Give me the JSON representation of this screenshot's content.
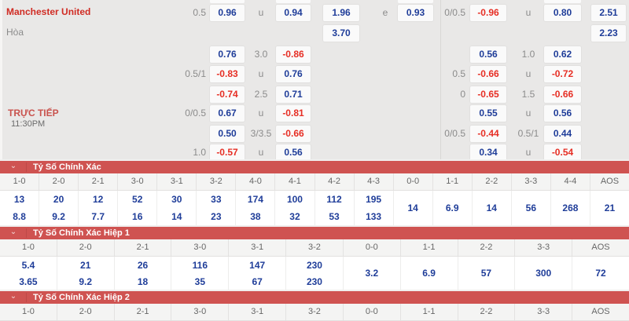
{
  "match": {
    "home_team": "Manchester United",
    "draw_label": "Hòa",
    "live_label": "TRỰC TIẾP",
    "time": "11:30PM"
  },
  "colors": {
    "blue": "#1f3d99",
    "red": "#e62e24",
    "bar": "#cf5351",
    "team": "#d02b23",
    "live": "#c9524d"
  },
  "top": {
    "cells": [
      {
        "r": 1,
        "c": "hcpL",
        "t": "0.5"
      },
      {
        "r": 1,
        "c": "A",
        "t": "0.96"
      },
      {
        "r": 1,
        "c": "midL",
        "t": "u"
      },
      {
        "r": 1,
        "c": "B",
        "t": "0.94"
      },
      {
        "r": 1,
        "c": "C",
        "t": "1.96"
      },
      {
        "r": 1,
        "c": "eL",
        "t": "e"
      },
      {
        "r": 1,
        "c": "D",
        "t": "0.93"
      },
      {
        "r": 1,
        "c": "hcpR",
        "t": "0/0.5"
      },
      {
        "r": 1,
        "c": "E",
        "t": "-0.96"
      },
      {
        "r": 1,
        "c": "midR",
        "t": "u"
      },
      {
        "r": 1,
        "c": "F",
        "t": "0.80"
      },
      {
        "r": 1,
        "c": "G",
        "t": "2.51"
      },
      {
        "r": 2,
        "c": "C",
        "t": "3.70"
      },
      {
        "r": 2,
        "c": "G",
        "t": "2.23"
      },
      {
        "r": 3,
        "c": "A",
        "t": "0.76"
      },
      {
        "r": 3,
        "c": "midL",
        "t": "3.0"
      },
      {
        "r": 3,
        "c": "B",
        "t": "-0.86"
      },
      {
        "r": 3,
        "c": "E",
        "t": "0.56"
      },
      {
        "r": 3,
        "c": "midR",
        "t": "1.0"
      },
      {
        "r": 3,
        "c": "F",
        "t": "0.62"
      },
      {
        "r": 4,
        "c": "hcpL",
        "t": "0.5/1"
      },
      {
        "r": 4,
        "c": "A",
        "t": "-0.83"
      },
      {
        "r": 4,
        "c": "midL",
        "t": "u"
      },
      {
        "r": 4,
        "c": "B",
        "t": "0.76"
      },
      {
        "r": 4,
        "c": "hcpR",
        "t": "0.5"
      },
      {
        "r": 4,
        "c": "E",
        "t": "-0.66"
      },
      {
        "r": 4,
        "c": "midR",
        "t": "u"
      },
      {
        "r": 4,
        "c": "F",
        "t": "-0.72"
      },
      {
        "r": 5,
        "c": "A",
        "t": "-0.74"
      },
      {
        "r": 5,
        "c": "midL",
        "t": "2.5"
      },
      {
        "r": 5,
        "c": "B",
        "t": "0.71"
      },
      {
        "r": 5,
        "c": "hcpR",
        "t": "0"
      },
      {
        "r": 5,
        "c": "E",
        "t": "-0.65"
      },
      {
        "r": 5,
        "c": "midR",
        "t": "1.5"
      },
      {
        "r": 5,
        "c": "F",
        "t": "-0.66"
      },
      {
        "r": 6,
        "c": "hcpL",
        "t": "0/0.5"
      },
      {
        "r": 6,
        "c": "A",
        "t": "0.67"
      },
      {
        "r": 6,
        "c": "midL",
        "t": "u"
      },
      {
        "r": 6,
        "c": "B",
        "t": "-0.81"
      },
      {
        "r": 6,
        "c": "E",
        "t": "0.55"
      },
      {
        "r": 6,
        "c": "midR",
        "t": "u"
      },
      {
        "r": 6,
        "c": "F",
        "t": "0.56"
      },
      {
        "r": 7,
        "c": "A",
        "t": "0.50"
      },
      {
        "r": 7,
        "c": "midL",
        "t": "3/3.5"
      },
      {
        "r": 7,
        "c": "B",
        "t": "-0.66"
      },
      {
        "r": 7,
        "c": "hcpR",
        "t": "0/0.5"
      },
      {
        "r": 7,
        "c": "E",
        "t": "-0.44"
      },
      {
        "r": 7,
        "c": "midR",
        "t": "0.5/1"
      },
      {
        "r": 7,
        "c": "F",
        "t": "0.44"
      },
      {
        "r": 8,
        "c": "hcpL",
        "t": "1.0"
      },
      {
        "r": 8,
        "c": "A",
        "t": "-0.57"
      },
      {
        "r": 8,
        "c": "midL",
        "t": "u"
      },
      {
        "r": 8,
        "c": "B",
        "t": "0.56"
      },
      {
        "r": 8,
        "c": "E",
        "t": "0.34"
      },
      {
        "r": 8,
        "c": "midR",
        "t": "u"
      },
      {
        "r": 8,
        "c": "F",
        "t": "-0.54"
      }
    ],
    "fragments": [
      "A",
      "B",
      "D",
      "F"
    ]
  },
  "sections": [
    {
      "title": "Tỷ Số Chính Xác",
      "chevron": "⌄",
      "columns": [
        {
          "label": "1-0",
          "values": [
            "13",
            "8.8"
          ]
        },
        {
          "label": "2-0",
          "values": [
            "20",
            "9.2"
          ]
        },
        {
          "label": "2-1",
          "values": [
            "12",
            "7.7"
          ]
        },
        {
          "label": "3-0",
          "values": [
            "52",
            "16"
          ]
        },
        {
          "label": "3-1",
          "values": [
            "30",
            "14"
          ]
        },
        {
          "label": "3-2",
          "values": [
            "33",
            "23"
          ]
        },
        {
          "label": "4-0",
          "values": [
            "174",
            "38"
          ]
        },
        {
          "label": "4-1",
          "values": [
            "100",
            "32"
          ]
        },
        {
          "label": "4-2",
          "values": [
            "112",
            "53"
          ]
        },
        {
          "label": "4-3",
          "values": [
            "195",
            "133"
          ]
        },
        {
          "label": "0-0",
          "values": [
            "14"
          ]
        },
        {
          "label": "1-1",
          "values": [
            "6.9"
          ]
        },
        {
          "label": "2-2",
          "values": [
            "14"
          ]
        },
        {
          "label": "3-3",
          "values": [
            "56"
          ]
        },
        {
          "label": "4-4",
          "values": [
            "268"
          ]
        },
        {
          "label": "AOS",
          "values": [
            "21"
          ]
        }
      ]
    },
    {
      "title": "Tỷ Số Chính Xác Hiệp 1",
      "chevron": "⌄",
      "columns": [
        {
          "label": "1-0",
          "values": [
            "5.4",
            "3.65"
          ]
        },
        {
          "label": "2-0",
          "values": [
            "21",
            "9.2"
          ]
        },
        {
          "label": "2-1",
          "values": [
            "26",
            "18"
          ]
        },
        {
          "label": "3-0",
          "values": [
            "116",
            "35"
          ]
        },
        {
          "label": "3-1",
          "values": [
            "147",
            "67"
          ]
        },
        {
          "label": "3-2",
          "values": [
            "230",
            "230"
          ]
        },
        {
          "label": "0-0",
          "values": [
            "3.2"
          ]
        },
        {
          "label": "1-1",
          "values": [
            "6.9"
          ]
        },
        {
          "label": "2-2",
          "values": [
            "57"
          ]
        },
        {
          "label": "3-3",
          "values": [
            "300"
          ]
        },
        {
          "label": "AOS",
          "values": [
            "72"
          ]
        }
      ]
    },
    {
      "title": "Tỷ Số Chính Xác Hiệp 2",
      "chevron": "⌄",
      "columns": [
        {
          "label": "1-0",
          "values": []
        },
        {
          "label": "2-0",
          "values": []
        },
        {
          "label": "2-1",
          "values": []
        },
        {
          "label": "3-0",
          "values": []
        },
        {
          "label": "3-1",
          "values": []
        },
        {
          "label": "3-2",
          "values": []
        },
        {
          "label": "0-0",
          "values": []
        },
        {
          "label": "1-1",
          "values": []
        },
        {
          "label": "2-2",
          "values": []
        },
        {
          "label": "3-3",
          "values": []
        },
        {
          "label": "AOS",
          "values": []
        }
      ]
    }
  ]
}
